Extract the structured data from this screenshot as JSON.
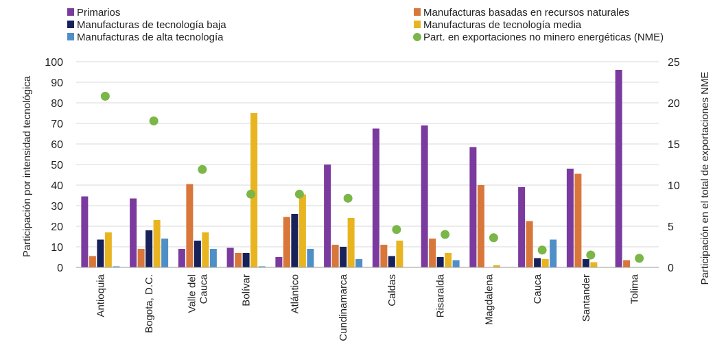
{
  "chart_data": {
    "type": "bar",
    "categories": [
      "Antioquia",
      "Bogota, D.C.",
      "Valle del Cauca",
      "Bolívar",
      "Atlántico",
      "Cundinamarca",
      "Caldas",
      "Risaralda",
      "Magdalena",
      "Cauca",
      "Santander",
      "Tolima"
    ],
    "series": [
      {
        "name": "Primarios",
        "color": "#7a3a9e",
        "values": [
          34.5,
          33.5,
          9,
          9.5,
          5,
          50,
          67.5,
          69,
          58.5,
          39,
          48,
          96
        ]
      },
      {
        "name": "Manufacturas basadas en recursos naturales",
        "color": "#d9763a",
        "values": [
          5.5,
          9,
          40.5,
          7,
          24.5,
          11,
          11,
          14,
          40,
          22.5,
          45.5,
          3.5
        ]
      },
      {
        "name": "Manufacturas de tecnología baja",
        "color": "#17215a",
        "values": [
          13.5,
          18,
          13,
          7,
          26,
          10,
          5.5,
          5,
          0,
          4.5,
          4,
          0
        ]
      },
      {
        "name": "Manufacturas de tecnología media",
        "color": "#e8b420",
        "values": [
          17,
          23,
          17,
          75,
          35.5,
          24,
          13,
          7,
          1,
          4,
          2.5,
          0
        ]
      },
      {
        "name": "Manufacturas de alta tecnología",
        "color": "#4f8fc8",
        "values": [
          0.5,
          14,
          9,
          0.5,
          9,
          4,
          0,
          3.5,
          0,
          13.5,
          0,
          0
        ]
      }
    ],
    "secondary_series": {
      "name": "Part. en exportaciones no minero energéticas (NME)",
      "color": "#7ab648",
      "axis": "right",
      "values": [
        20.8,
        17.8,
        11.9,
        8.9,
        8.9,
        8.4,
        4.6,
        4.0,
        3.6,
        2.1,
        1.5,
        1.1
      ]
    },
    "xlabel": "",
    "ylabel": "Participación por intensidad tecnológica",
    "y2label": "Participación en el total de exportaciones NME",
    "ylim": [
      0,
      100
    ],
    "y2lim": [
      0,
      25
    ],
    "yticks": [
      0,
      10,
      20,
      30,
      40,
      50,
      60,
      70,
      80,
      90,
      100
    ],
    "y2ticks": [
      0,
      5,
      10,
      15,
      20,
      25
    ],
    "grid": true,
    "legend_position": "top"
  }
}
